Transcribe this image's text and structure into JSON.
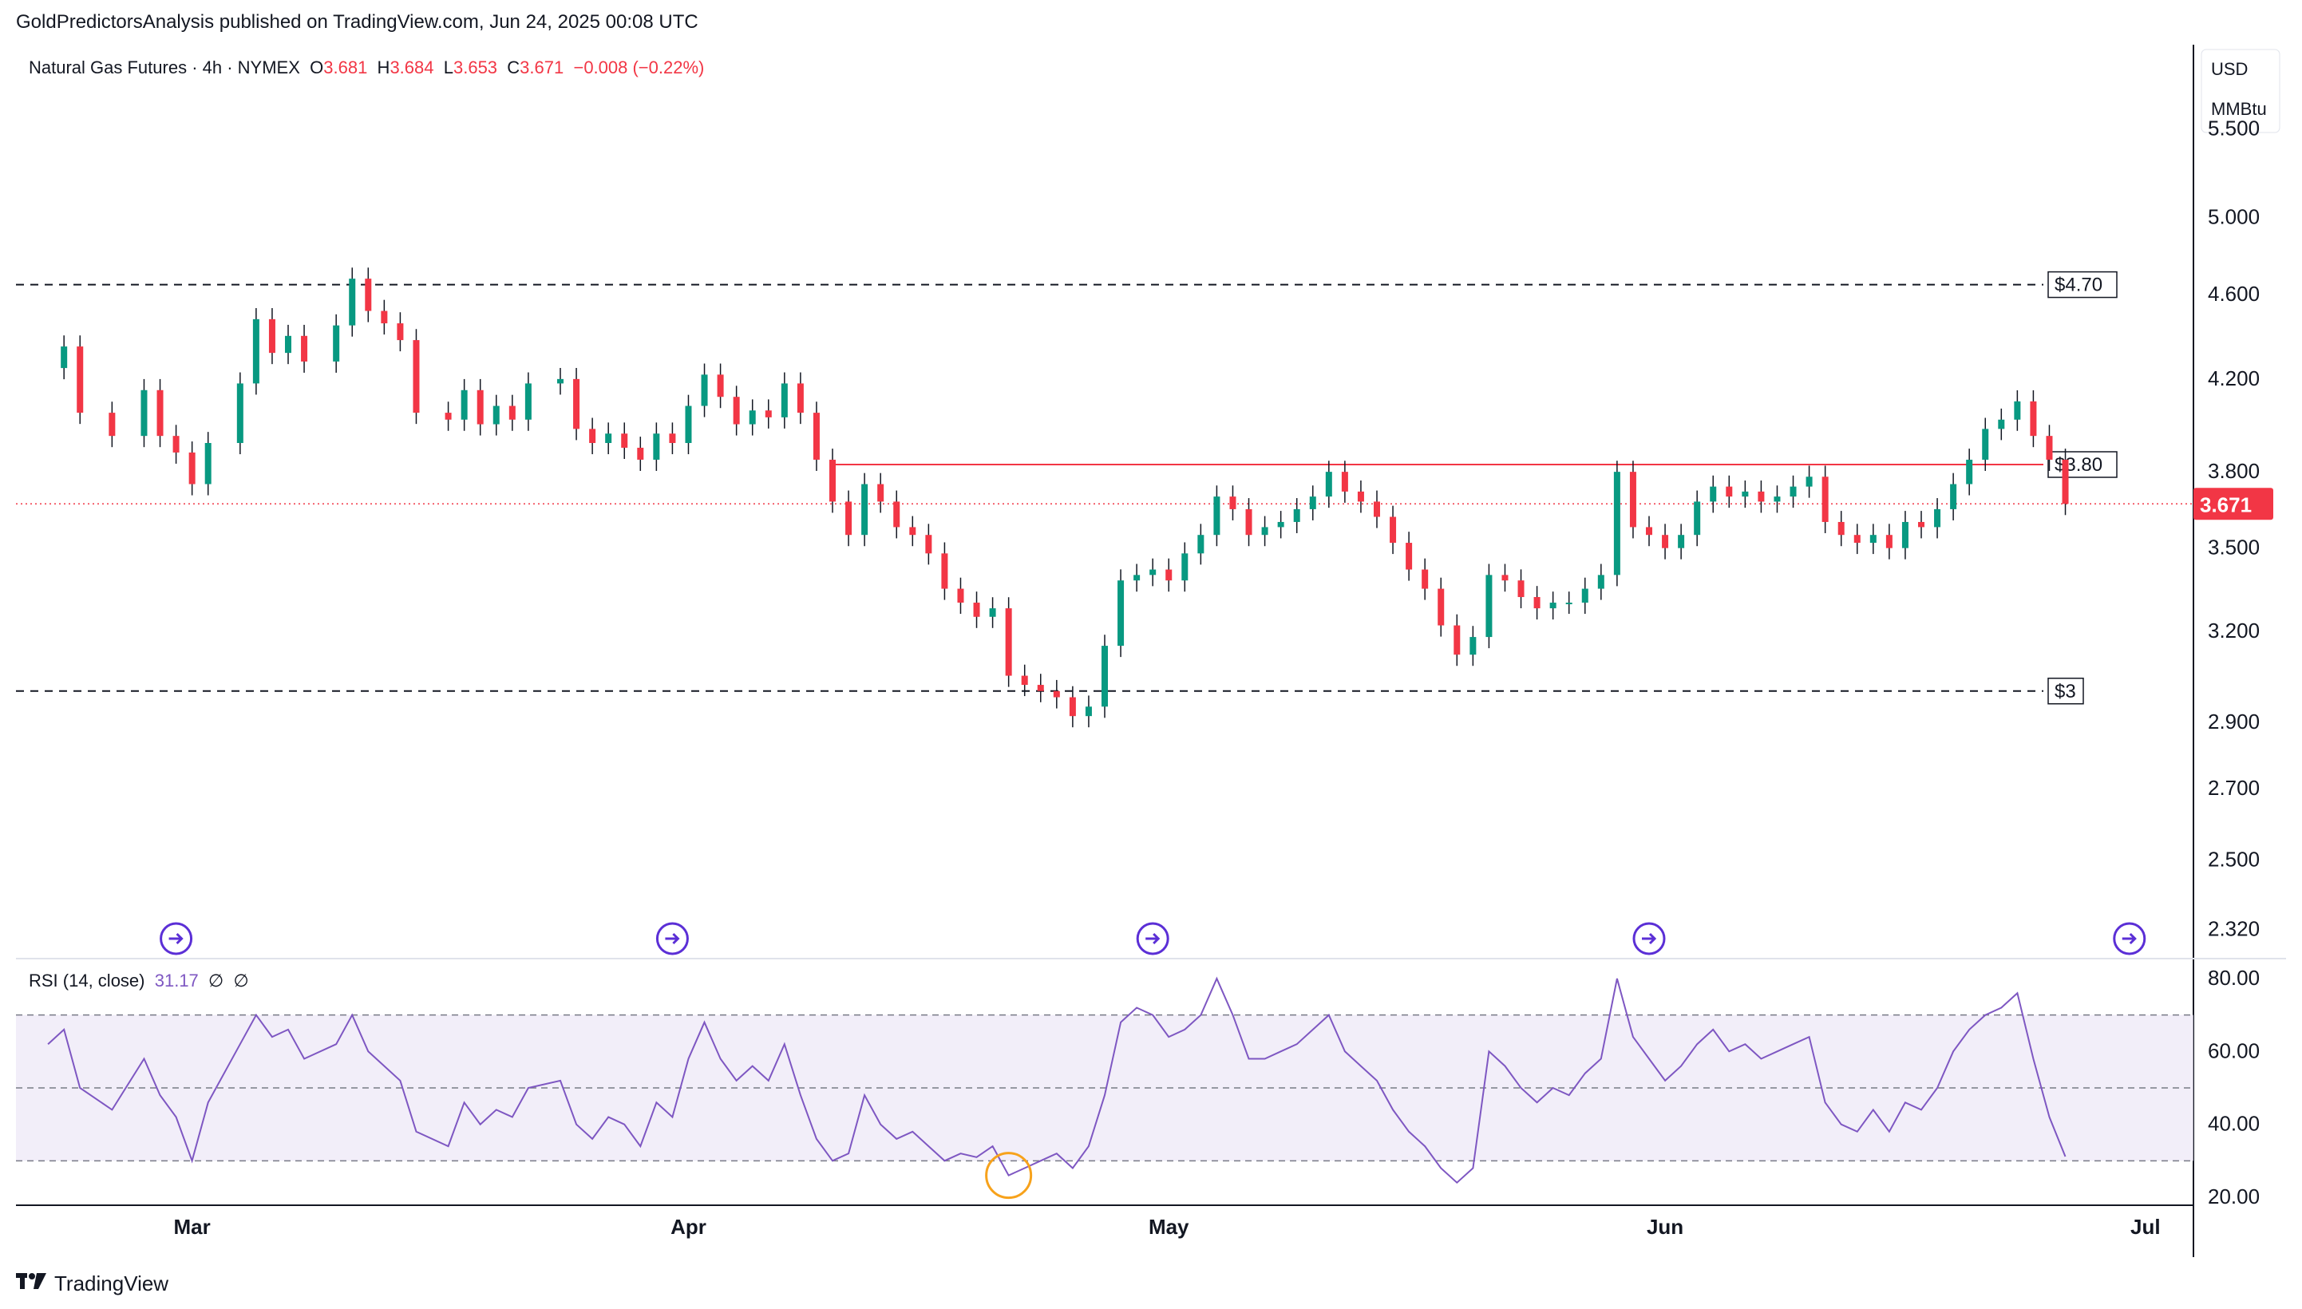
{
  "header": {
    "published": "GoldPredictorsAnalysis published on TradingView.com, Jun 24, 2025 00:08 UTC"
  },
  "footer": {
    "brand": "TradingView"
  },
  "legend": {
    "symbol": "Natural Gas Futures · 4h · NYMEX",
    "o_label": "O",
    "o": "3.681",
    "h_label": "H",
    "h": "3.684",
    "l_label": "L",
    "l": "3.653",
    "c_label": "C",
    "c": "3.671",
    "change": "−0.008 (−0.22%)"
  },
  "rsi_legend": {
    "name": "RSI (14, close)",
    "value": "31.17",
    "extra1": "∅",
    "extra2": "∅"
  },
  "colors": {
    "up": "#089981",
    "down": "#f23645",
    "rsi": "#7e57c2",
    "rsi_band": "#ede7f6",
    "bar": "#131722",
    "resistance": "#f23645",
    "dashed": "#131722",
    "circle": "#f7a21b",
    "event_icon": "#5b2fd6"
  },
  "chart_data": {
    "type": "candlestick",
    "title": "Natural Gas Futures · 4h · NYMEX",
    "currency": "USD",
    "unit": "MMBtu",
    "scale": "log",
    "y_ticks": [
      "5.500",
      "5.000",
      "4.600",
      "4.200",
      "3.800",
      "3.500",
      "3.200",
      "2.900",
      "2.700",
      "2.500",
      "2.320"
    ],
    "x_ticks": [
      "Mar",
      "Apr",
      "May",
      "Jun",
      "Jul"
    ],
    "last_price": "3.671",
    "levels": [
      {
        "label": "$4.70",
        "value": 4.65,
        "style": "dashed"
      },
      {
        "label": "$3.80",
        "value": 3.83,
        "style": "solid-red"
      },
      {
        "label": "$3",
        "value": 3.0,
        "style": "dashed"
      }
    ],
    "close_path": [
      [
        "2025-02-20",
        4.25
      ],
      [
        "2025-02-21",
        4.35
      ],
      [
        "2025-02-22",
        4.05
      ],
      [
        "2025-02-24",
        3.95
      ],
      [
        "2025-02-26",
        4.15
      ],
      [
        "2025-02-27",
        3.95
      ],
      [
        "2025-02-28",
        3.88
      ],
      [
        "2025-03-01",
        3.75
      ],
      [
        "2025-03-02",
        3.92
      ],
      [
        "2025-03-04",
        4.18
      ],
      [
        "2025-03-05",
        4.48
      ],
      [
        "2025-03-06",
        4.32
      ],
      [
        "2025-03-07",
        4.4
      ],
      [
        "2025-03-08",
        4.28
      ],
      [
        "2025-03-10",
        4.45
      ],
      [
        "2025-03-11",
        4.68
      ],
      [
        "2025-03-12",
        4.52
      ],
      [
        "2025-03-13",
        4.46
      ],
      [
        "2025-03-14",
        4.38
      ],
      [
        "2025-03-15",
        4.05
      ],
      [
        "2025-03-17",
        4.02
      ],
      [
        "2025-03-18",
        4.15
      ],
      [
        "2025-03-19",
        4.0
      ],
      [
        "2025-03-20",
        4.08
      ],
      [
        "2025-03-21",
        4.02
      ],
      [
        "2025-03-22",
        4.18
      ],
      [
        "2025-03-24",
        4.2
      ],
      [
        "2025-03-25",
        3.98
      ],
      [
        "2025-03-26",
        3.92
      ],
      [
        "2025-03-27",
        3.96
      ],
      [
        "2025-03-28",
        3.9
      ],
      [
        "2025-03-29",
        3.85
      ],
      [
        "2025-03-30",
        3.96
      ],
      [
        "2025-03-31",
        3.92
      ],
      [
        "2025-04-01",
        4.08
      ],
      [
        "2025-04-02",
        4.22
      ],
      [
        "2025-04-03",
        4.12
      ],
      [
        "2025-04-04",
        4.0
      ],
      [
        "2025-04-05",
        4.06
      ],
      [
        "2025-04-06",
        4.03
      ],
      [
        "2025-04-07",
        4.18
      ],
      [
        "2025-04-08",
        4.05
      ],
      [
        "2025-04-09",
        3.85
      ],
      [
        "2025-04-10",
        3.68
      ],
      [
        "2025-04-11",
        3.55
      ],
      [
        "2025-04-12",
        3.75
      ],
      [
        "2025-04-13",
        3.68
      ],
      [
        "2025-04-14",
        3.58
      ],
      [
        "2025-04-15",
        3.55
      ],
      [
        "2025-04-16",
        3.48
      ],
      [
        "2025-04-17",
        3.35
      ],
      [
        "2025-04-18",
        3.3
      ],
      [
        "2025-04-19",
        3.25
      ],
      [
        "2025-04-20",
        3.28
      ],
      [
        "2025-04-21",
        3.05
      ],
      [
        "2025-04-22",
        3.02
      ],
      [
        "2025-04-23",
        3.0
      ],
      [
        "2025-04-24",
        2.98
      ],
      [
        "2025-04-25",
        2.92
      ],
      [
        "2025-04-26",
        2.95
      ],
      [
        "2025-04-27",
        3.15
      ],
      [
        "2025-04-28",
        3.38
      ],
      [
        "2025-04-29",
        3.4
      ],
      [
        "2025-04-30",
        3.42
      ],
      [
        "2025-05-01",
        3.38
      ],
      [
        "2025-05-02",
        3.48
      ],
      [
        "2025-05-03",
        3.55
      ],
      [
        "2025-05-04",
        3.7
      ],
      [
        "2025-05-05",
        3.65
      ],
      [
        "2025-05-06",
        3.55
      ],
      [
        "2025-05-07",
        3.58
      ],
      [
        "2025-05-08",
        3.6
      ],
      [
        "2025-05-09",
        3.65
      ],
      [
        "2025-05-10",
        3.7
      ],
      [
        "2025-05-11",
        3.8
      ],
      [
        "2025-05-12",
        3.72
      ],
      [
        "2025-05-13",
        3.68
      ],
      [
        "2025-05-14",
        3.62
      ],
      [
        "2025-05-15",
        3.52
      ],
      [
        "2025-05-16",
        3.42
      ],
      [
        "2025-05-17",
        3.35
      ],
      [
        "2025-05-18",
        3.22
      ],
      [
        "2025-05-19",
        3.12
      ],
      [
        "2025-05-20",
        3.18
      ],
      [
        "2025-05-21",
        3.4
      ],
      [
        "2025-05-22",
        3.38
      ],
      [
        "2025-05-23",
        3.32
      ],
      [
        "2025-05-24",
        3.28
      ],
      [
        "2025-05-25",
        3.3
      ],
      [
        "2025-05-26",
        3.3
      ],
      [
        "2025-05-27",
        3.35
      ],
      [
        "2025-05-28",
        3.4
      ],
      [
        "2025-05-29",
        3.8
      ],
      [
        "2025-05-30",
        3.58
      ],
      [
        "2025-05-31",
        3.55
      ],
      [
        "2025-06-01",
        3.5
      ],
      [
        "2025-06-02",
        3.55
      ],
      [
        "2025-06-03",
        3.68
      ],
      [
        "2025-06-04",
        3.74
      ],
      [
        "2025-06-05",
        3.7
      ],
      [
        "2025-06-06",
        3.72
      ],
      [
        "2025-06-07",
        3.68
      ],
      [
        "2025-06-08",
        3.7
      ],
      [
        "2025-06-09",
        3.74
      ],
      [
        "2025-06-10",
        3.78
      ],
      [
        "2025-06-11",
        3.6
      ],
      [
        "2025-06-12",
        3.55
      ],
      [
        "2025-06-13",
        3.52
      ],
      [
        "2025-06-14",
        3.55
      ],
      [
        "2025-06-15",
        3.5
      ],
      [
        "2025-06-16",
        3.6
      ],
      [
        "2025-06-17",
        3.58
      ],
      [
        "2025-06-18",
        3.65
      ],
      [
        "2025-06-19",
        3.75
      ],
      [
        "2025-06-20",
        3.85
      ],
      [
        "2025-06-21",
        3.98
      ],
      [
        "2025-06-22",
        4.02
      ],
      [
        "2025-06-23",
        4.1
      ],
      [
        "2025-06-24",
        3.95
      ],
      [
        "2025-06-25",
        3.85
      ],
      [
        "2025-06-26",
        3.671
      ]
    ],
    "rsi": {
      "name": "RSI (14, close)",
      "last": 31.17,
      "ticks": [
        "80.00",
        "60.00",
        "40.00",
        "20.00"
      ],
      "band": [
        30,
        70
      ],
      "path": [
        [
          "2025-02-20",
          62
        ],
        [
          "2025-02-21",
          66
        ],
        [
          "2025-02-22",
          50
        ],
        [
          "2025-02-24",
          44
        ],
        [
          "2025-02-26",
          58
        ],
        [
          "2025-02-27",
          48
        ],
        [
          "2025-02-28",
          42
        ],
        [
          "2025-03-01",
          30
        ],
        [
          "2025-03-02",
          46
        ],
        [
          "2025-03-04",
          62
        ],
        [
          "2025-03-05",
          70
        ],
        [
          "2025-03-06",
          64
        ],
        [
          "2025-03-07",
          66
        ],
        [
          "2025-03-08",
          58
        ],
        [
          "2025-03-10",
          62
        ],
        [
          "2025-03-11",
          70
        ],
        [
          "2025-03-12",
          60
        ],
        [
          "2025-03-13",
          56
        ],
        [
          "2025-03-14",
          52
        ],
        [
          "2025-03-15",
          38
        ],
        [
          "2025-03-17",
          34
        ],
        [
          "2025-03-18",
          46
        ],
        [
          "2025-03-19",
          40
        ],
        [
          "2025-03-20",
          44
        ],
        [
          "2025-03-21",
          42
        ],
        [
          "2025-03-22",
          50
        ],
        [
          "2025-03-24",
          52
        ],
        [
          "2025-03-25",
          40
        ],
        [
          "2025-03-26",
          36
        ],
        [
          "2025-03-27",
          42
        ],
        [
          "2025-03-28",
          40
        ],
        [
          "2025-03-29",
          34
        ],
        [
          "2025-03-30",
          46
        ],
        [
          "2025-03-31",
          42
        ],
        [
          "2025-04-01",
          58
        ],
        [
          "2025-04-02",
          68
        ],
        [
          "2025-04-03",
          58
        ],
        [
          "2025-04-04",
          52
        ],
        [
          "2025-04-05",
          56
        ],
        [
          "2025-04-06",
          52
        ],
        [
          "2025-04-07",
          62
        ],
        [
          "2025-04-08",
          48
        ],
        [
          "2025-04-09",
          36
        ],
        [
          "2025-04-10",
          30
        ],
        [
          "2025-04-11",
          32
        ],
        [
          "2025-04-12",
          48
        ],
        [
          "2025-04-13",
          40
        ],
        [
          "2025-04-14",
          36
        ],
        [
          "2025-04-15",
          38
        ],
        [
          "2025-04-16",
          34
        ],
        [
          "2025-04-17",
          30
        ],
        [
          "2025-04-18",
          32
        ],
        [
          "2025-04-19",
          31
        ],
        [
          "2025-04-20",
          34
        ],
        [
          "2025-04-21",
          26
        ],
        [
          "2025-04-22",
          28
        ],
        [
          "2025-04-23",
          30
        ],
        [
          "2025-04-24",
          32
        ],
        [
          "2025-04-25",
          28
        ],
        [
          "2025-04-26",
          34
        ],
        [
          "2025-04-27",
          48
        ],
        [
          "2025-04-28",
          68
        ],
        [
          "2025-04-29",
          72
        ],
        [
          "2025-04-30",
          70
        ],
        [
          "2025-05-01",
          64
        ],
        [
          "2025-05-02",
          66
        ],
        [
          "2025-05-03",
          70
        ],
        [
          "2025-05-04",
          80
        ],
        [
          "2025-05-05",
          70
        ],
        [
          "2025-05-06",
          58
        ],
        [
          "2025-05-07",
          58
        ],
        [
          "2025-05-08",
          60
        ],
        [
          "2025-05-09",
          62
        ],
        [
          "2025-05-10",
          66
        ],
        [
          "2025-05-11",
          70
        ],
        [
          "2025-05-12",
          60
        ],
        [
          "2025-05-13",
          56
        ],
        [
          "2025-05-14",
          52
        ],
        [
          "2025-05-15",
          44
        ],
        [
          "2025-05-16",
          38
        ],
        [
          "2025-05-17",
          34
        ],
        [
          "2025-05-18",
          28
        ],
        [
          "2025-05-19",
          24
        ],
        [
          "2025-05-20",
          28
        ],
        [
          "2025-05-21",
          60
        ],
        [
          "2025-05-22",
          56
        ],
        [
          "2025-05-23",
          50
        ],
        [
          "2025-05-24",
          46
        ],
        [
          "2025-05-25",
          50
        ],
        [
          "2025-05-26",
          48
        ],
        [
          "2025-05-27",
          54
        ],
        [
          "2025-05-28",
          58
        ],
        [
          "2025-05-29",
          80
        ],
        [
          "2025-05-30",
          64
        ],
        [
          "2025-05-31",
          58
        ],
        [
          "2025-06-01",
          52
        ],
        [
          "2025-06-02",
          56
        ],
        [
          "2025-06-03",
          62
        ],
        [
          "2025-06-04",
          66
        ],
        [
          "2025-06-05",
          60
        ],
        [
          "2025-06-06",
          62
        ],
        [
          "2025-06-07",
          58
        ],
        [
          "2025-06-08",
          60
        ],
        [
          "2025-06-09",
          62
        ],
        [
          "2025-06-10",
          64
        ],
        [
          "2025-06-11",
          46
        ],
        [
          "2025-06-12",
          40
        ],
        [
          "2025-06-13",
          38
        ],
        [
          "2025-06-14",
          44
        ],
        [
          "2025-06-15",
          38
        ],
        [
          "2025-06-16",
          46
        ],
        [
          "2025-06-17",
          44
        ],
        [
          "2025-06-18",
          50
        ],
        [
          "2025-06-19",
          60
        ],
        [
          "2025-06-20",
          66
        ],
        [
          "2025-06-21",
          70
        ],
        [
          "2025-06-22",
          72
        ],
        [
          "2025-06-23",
          76
        ],
        [
          "2025-06-24",
          58
        ],
        [
          "2025-06-25",
          42
        ],
        [
          "2025-06-26",
          31.17
        ]
      ]
    },
    "events": [
      "2025-02-28",
      "2025-03-31",
      "2025-04-30",
      "2025-05-31",
      "2025-06-30"
    ],
    "highlight": {
      "series": "rsi",
      "date": "2025-04-21",
      "value": 26
    }
  }
}
